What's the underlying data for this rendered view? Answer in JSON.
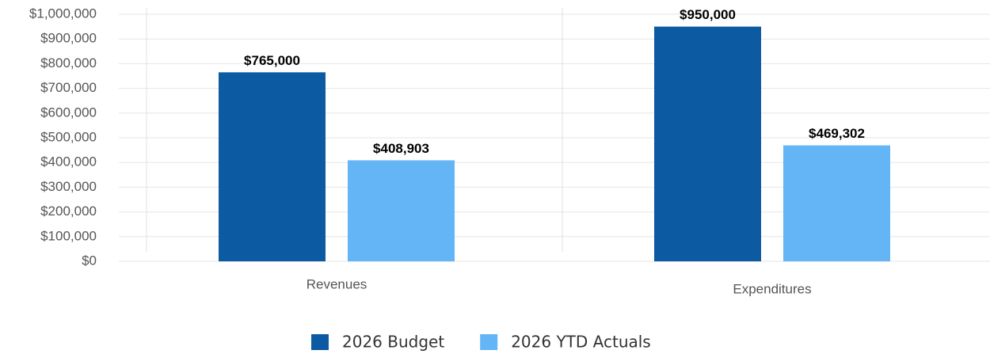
{
  "chart_data": {
    "type": "bar",
    "categories": [
      "Revenues",
      "Expenditures"
    ],
    "series": [
      {
        "name": "2026 Budget",
        "color": "#0b5aa2",
        "values": [
          765000,
          950000
        ],
        "value_labels": [
          "$765,000",
          "$950,000"
        ]
      },
      {
        "name": "2026 YTD Actuals",
        "color": "#64b5f6",
        "values": [
          408903,
          469302
        ],
        "value_labels": [
          "$408,903",
          "$469,302"
        ]
      }
    ],
    "ylim": [
      0,
      1000000
    ],
    "yticks": [
      {
        "value": 0,
        "label": "$0"
      },
      {
        "value": 100000,
        "label": "$100,000"
      },
      {
        "value": 200000,
        "label": "$200,000"
      },
      {
        "value": 300000,
        "label": "$300,000"
      },
      {
        "value": 400000,
        "label": "$400,000"
      },
      {
        "value": 500000,
        "label": "$500,000"
      },
      {
        "value": 600000,
        "label": "$600,000"
      },
      {
        "value": 700000,
        "label": "$700,000"
      },
      {
        "value": 800000,
        "label": "$800,000"
      },
      {
        "value": 900000,
        "label": "$900,000"
      },
      {
        "value": 1000000,
        "label": "$1,000,000"
      }
    ],
    "grid": true,
    "legend": "bottom"
  }
}
